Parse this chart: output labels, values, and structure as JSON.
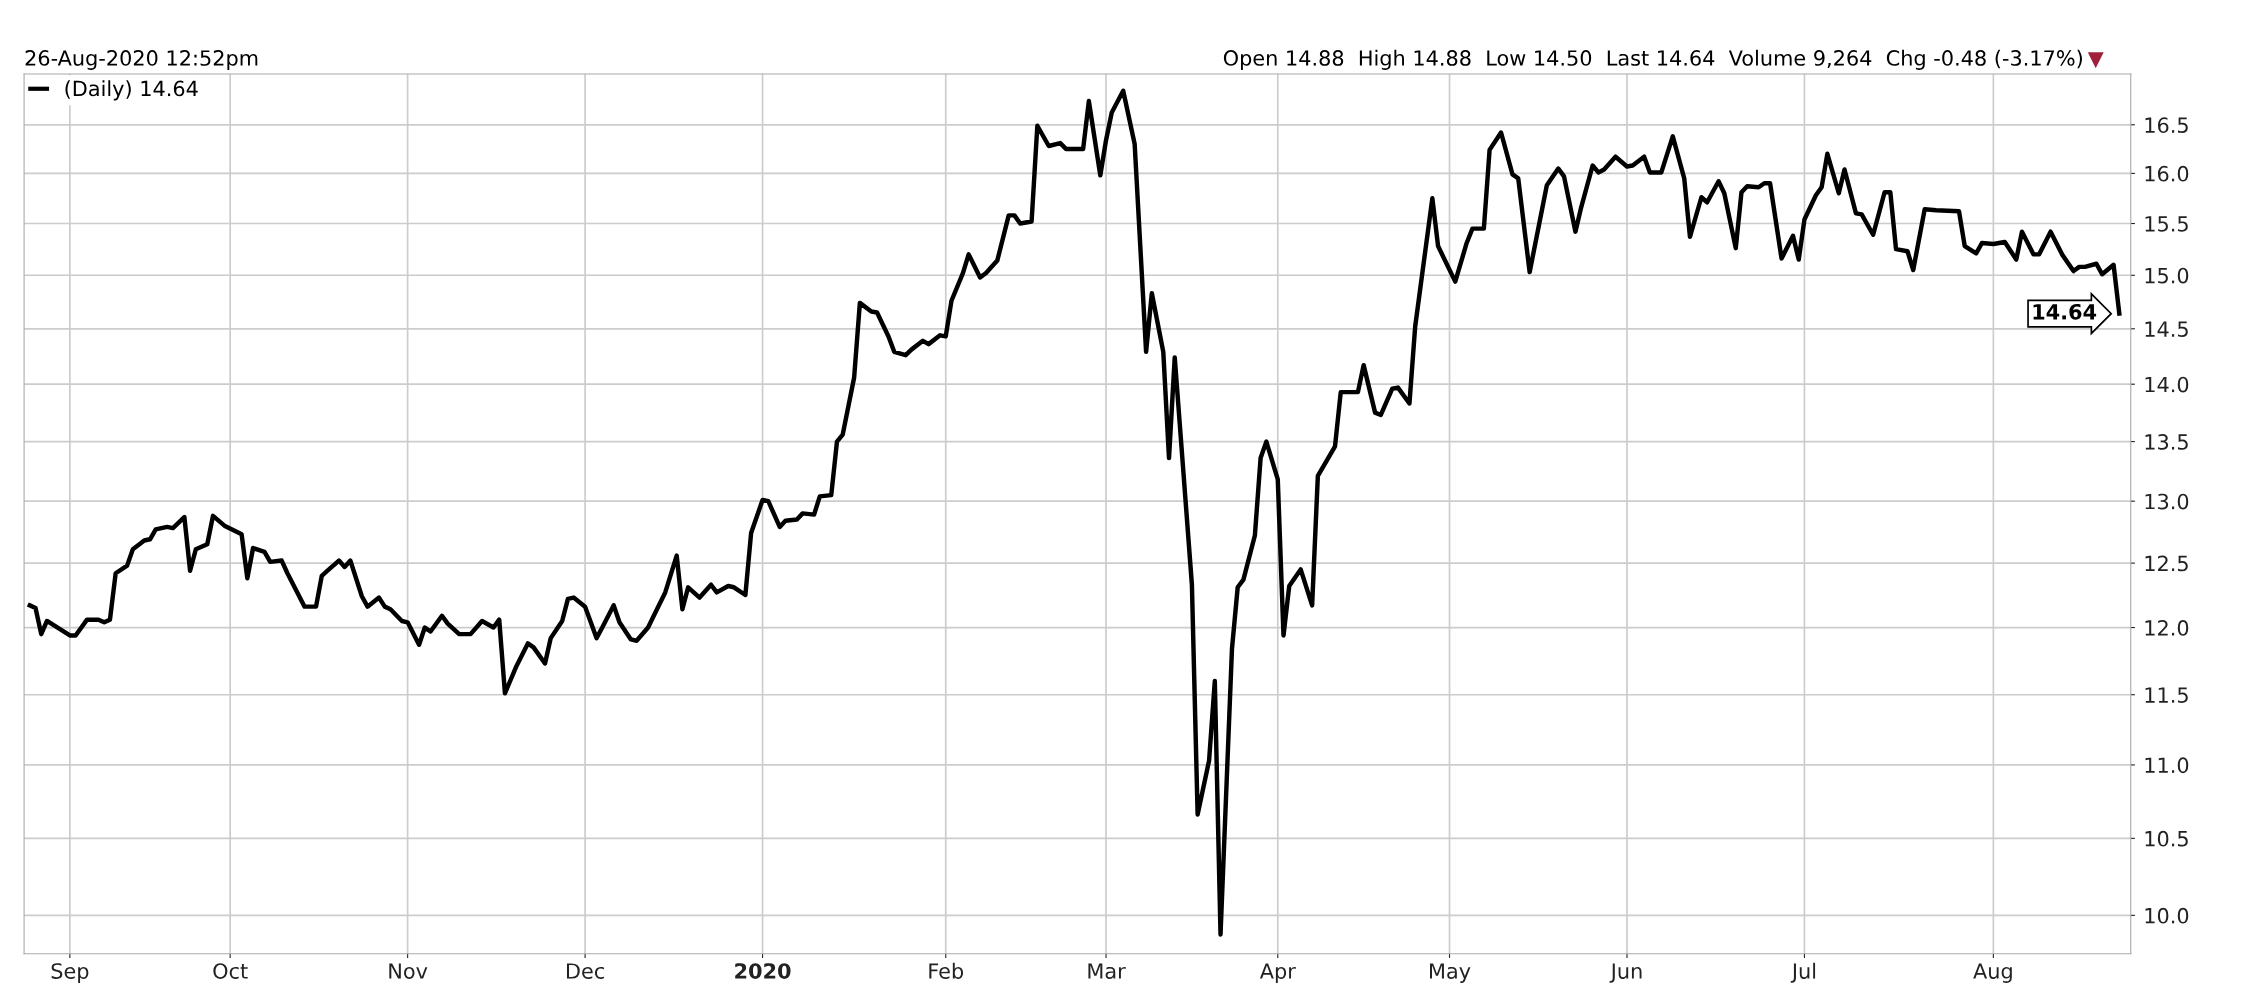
{
  "chart_data": {
    "type": "line",
    "subtitle": "26-Aug-2020 12:52pm",
    "annotations": [
      "Open 14.88  High 14.88  Low 14.50  Last 14.64  Volume 9,264  Chg -0.48 (-3.17%)",
      "▼",
      {
        "text": "14.64",
        "x": "2020-08-26",
        "y": 14.64
      }
    ],
    "x": [
      "2019-08-27",
      "2019-08-28",
      "2019-08-29",
      "2019-08-30",
      "2019-09-03",
      "2019-09-04",
      "2019-09-06",
      "2019-09-08",
      "2019-09-09",
      "2019-09-10",
      "2019-09-11",
      "2019-09-13",
      "2019-09-14",
      "2019-09-16",
      "2019-09-17",
      "2019-09-18",
      "2019-09-20",
      "2019-09-21",
      "2019-09-23",
      "2019-09-24",
      "2019-09-25",
      "2019-09-27",
      "2019-09-28",
      "2019-09-30",
      "2019-10-03",
      "2019-10-04",
      "2019-10-05",
      "2019-10-07",
      "2019-10-08",
      "2019-10-10",
      "2019-10-11",
      "2019-10-14",
      "2019-10-16",
      "2019-10-17",
      "2019-10-18",
      "2019-10-20",
      "2019-10-21",
      "2019-10-22",
      "2019-10-24",
      "2019-10-25",
      "2019-10-27",
      "2019-10-28",
      "2019-10-29",
      "2019-10-31",
      "2019-11-01",
      "2019-11-03",
      "2019-11-04",
      "2019-11-05",
      "2019-11-07",
      "2019-11-08",
      "2019-11-10",
      "2019-11-12",
      "2019-11-14",
      "2019-11-16",
      "2019-11-17",
      "2019-11-18",
      "2019-11-20",
      "2019-11-22",
      "2019-11-23",
      "2019-11-25",
      "2019-11-26",
      "2019-11-28",
      "2019-11-29",
      "2019-11-30",
      "2019-12-02",
      "2019-12-04",
      "2019-12-05",
      "2019-12-07",
      "2019-12-08",
      "2019-12-10",
      "2019-12-11",
      "2019-12-13",
      "2019-12-14",
      "2019-12-16",
      "2019-12-18",
      "2019-12-19",
      "2019-12-20",
      "2019-12-22",
      "2019-12-24",
      "2019-12-25",
      "2019-12-27",
      "2019-12-28",
      "2019-12-30",
      "2019-12-31",
      "2020-01-02",
      "2020-01-03",
      "2020-01-05",
      "2020-01-06",
      "2020-01-08",
      "2020-01-09",
      "2020-01-11",
      "2020-01-12",
      "2020-01-14",
      "2020-01-15",
      "2020-01-16",
      "2020-01-18",
      "2020-01-19",
      "2020-01-21",
      "2020-01-22",
      "2020-01-24",
      "2020-01-25",
      "2020-01-27",
      "2020-01-28",
      "2020-01-30",
      "2020-01-31",
      "2020-02-02",
      "2020-02-03",
      "2020-02-04",
      "2020-02-06",
      "2020-02-07",
      "2020-02-09",
      "2020-02-10",
      "2020-02-12",
      "2020-02-14",
      "2020-02-15",
      "2020-02-16",
      "2020-02-18",
      "2020-02-19",
      "2020-02-21",
      "2020-02-23",
      "2020-02-24",
      "2020-02-27",
      "2020-02-28",
      "2020-03-01",
      "2020-03-02",
      "2020-03-03",
      "2020-03-05",
      "2020-03-07",
      "2020-03-09",
      "2020-03-10",
      "2020-03-12",
      "2020-03-13",
      "2020-03-14",
      "2020-03-17",
      "2020-03-18",
      "2020-03-20",
      "2020-03-21",
      "2020-03-22",
      "2020-03-24",
      "2020-03-25",
      "2020-03-26",
      "2020-03-28",
      "2020-03-29",
      "2020-03-30",
      "2020-04-01",
      "2020-04-02",
      "2020-04-03",
      "2020-04-05",
      "2020-04-07",
      "2020-04-08",
      "2020-04-11",
      "2020-04-12",
      "2020-04-15",
      "2020-04-16",
      "2020-04-18",
      "2020-04-19",
      "2020-04-21",
      "2020-04-22",
      "2020-04-24",
      "2020-04-25",
      "2020-04-28",
      "2020-04-29",
      "2020-05-02",
      "2020-05-04",
      "2020-05-05",
      "2020-05-07",
      "2020-05-08",
      "2020-05-10",
      "2020-05-12",
      "2020-05-13",
      "2020-05-15",
      "2020-05-18",
      "2020-05-20",
      "2020-05-21",
      "2020-05-23",
      "2020-05-24",
      "2020-05-26",
      "2020-05-27",
      "2020-05-28",
      "2020-05-30",
      "2020-06-01",
      "2020-06-02",
      "2020-06-04",
      "2020-06-05",
      "2020-06-07",
      "2020-06-09",
      "2020-06-11",
      "2020-06-12",
      "2020-06-14",
      "2020-06-15",
      "2020-06-17",
      "2020-06-18",
      "2020-06-20",
      "2020-06-21",
      "2020-06-22",
      "2020-06-24",
      "2020-06-25",
      "2020-06-26",
      "2020-06-28",
      "2020-06-30",
      "2020-07-01",
      "2020-07-02",
      "2020-07-04",
      "2020-07-05",
      "2020-07-06",
      "2020-07-08",
      "2020-07-09",
      "2020-07-11",
      "2020-07-12",
      "2020-07-14",
      "2020-07-16",
      "2020-07-17",
      "2020-07-18",
      "2020-07-20",
      "2020-07-21",
      "2020-07-23",
      "2020-07-25",
      "2020-07-29",
      "2020-07-30",
      "2020-08-01",
      "2020-08-02",
      "2020-08-04",
      "2020-08-06",
      "2020-08-08",
      "2020-08-09",
      "2020-08-11",
      "2020-08-12",
      "2020-08-14",
      "2020-08-16",
      "2020-08-18",
      "2020-08-19",
      "2020-08-20",
      "2020-08-22",
      "2020-08-23",
      "2020-08-25",
      "2020-08-26"
    ],
    "series": [
      {
        "name": "(Daily) 14.64",
        "color": "#000000",
        "values": [
          12.17,
          12.15,
          11.95,
          12.05,
          11.94,
          11.94,
          12.06,
          12.06,
          12.04,
          12.06,
          12.42,
          12.48,
          12.61,
          12.68,
          12.69,
          12.77,
          12.79,
          12.78,
          12.87,
          12.44,
          12.61,
          12.65,
          12.88,
          12.8,
          12.73,
          12.38,
          12.62,
          12.59,
          12.51,
          12.52,
          12.42,
          12.16,
          12.16,
          12.4,
          12.44,
          12.52,
          12.47,
          12.52,
          12.24,
          12.16,
          12.23,
          12.16,
          12.14,
          12.05,
          12.04,
          11.87,
          12.0,
          11.97,
          12.09,
          12.03,
          11.95,
          11.95,
          12.05,
          12.0,
          12.06,
          11.51,
          11.71,
          11.88,
          11.85,
          11.73,
          11.92,
          12.05,
          12.22,
          12.23,
          12.16,
          11.92,
          12.0,
          12.17,
          12.04,
          11.91,
          11.9,
          12.0,
          12.09,
          12.27,
          12.56,
          12.14,
          12.31,
          12.23,
          12.33,
          12.27,
          12.32,
          12.31,
          12.25,
          12.74,
          13.01,
          13.0,
          12.79,
          12.84,
          12.85,
          12.9,
          12.89,
          13.04,
          13.05,
          13.5,
          13.56,
          14.06,
          14.74,
          14.66,
          14.65,
          14.43,
          14.29,
          14.26,
          14.31,
          14.39,
          14.36,
          14.44,
          14.43,
          14.76,
          15.02,
          15.2,
          14.98,
          15.02,
          15.14,
          15.58,
          15.58,
          15.5,
          15.52,
          16.49,
          16.28,
          16.31,
          16.25,
          16.25,
          16.75,
          15.98,
          16.34,
          16.63,
          16.86,
          16.3,
          14.29,
          14.83,
          14.29,
          13.36,
          14.24,
          12.33,
          10.66,
          11.03,
          11.6,
          9.88,
          11.84,
          12.31,
          12.37,
          12.72,
          13.36,
          13.5,
          13.18,
          11.94,
          12.32,
          12.45,
          12.17,
          13.21,
          13.46,
          13.93,
          13.93,
          14.17,
          13.75,
          13.73,
          13.96,
          13.97,
          13.83,
          14.52,
          15.75,
          15.28,
          14.94,
          15.31,
          15.45,
          15.45,
          16.24,
          16.42,
          15.99,
          15.95,
          15.03,
          15.88,
          16.05,
          15.97,
          15.42,
          15.66,
          16.08,
          16.01,
          16.04,
          16.17,
          16.07,
          16.08,
          16.17,
          16.01,
          16.01,
          16.38,
          15.95,
          15.37,
          15.76,
          15.71,
          15.92,
          15.8,
          15.26,
          15.81,
          15.87,
          15.86,
          15.9,
          15.9,
          15.16,
          15.38,
          15.15,
          15.54,
          15.78,
          15.86,
          16.2,
          15.8,
          16.04,
          15.6,
          15.59,
          15.39,
          15.81,
          15.81,
          15.25,
          15.23,
          15.05,
          15.64,
          15.63,
          15.62,
          15.28,
          15.21,
          15.31,
          15.3,
          15.32,
          15.15,
          15.42,
          15.2,
          15.2,
          15.42,
          15.2,
          15.04,
          15.08,
          15.08,
          15.11,
          15.01,
          15.1,
          14.64
        ]
      }
    ],
    "xlim": [
      "2019-08-26",
      "2020-08-28"
    ],
    "xticks": [
      {
        "value": "2019-09-03",
        "label": "Sep"
      },
      {
        "value": "2019-10-01",
        "label": "Oct"
      },
      {
        "value": "2019-11-01",
        "label": "Nov"
      },
      {
        "value": "2019-12-02",
        "label": "Dec"
      },
      {
        "value": "2020-01-02",
        "label": "2020"
      },
      {
        "value": "2020-02-03",
        "label": "Feb"
      },
      {
        "value": "2020-03-02",
        "label": "Mar"
      },
      {
        "value": "2020-04-01",
        "label": "Apr"
      },
      {
        "value": "2020-05-01",
        "label": "May"
      },
      {
        "value": "2020-06-01",
        "label": "Jun"
      },
      {
        "value": "2020-07-02",
        "label": "Jul"
      },
      {
        "value": "2020-08-04",
        "label": "Aug"
      }
    ],
    "log": true,
    "ylim": [
      9.76,
      17.04
    ],
    "yticks": [
      {
        "value": 10,
        "label": "10.0"
      },
      10.5,
      {
        "value": 11,
        "label": "11.0"
      },
      11.5,
      {
        "value": 12,
        "label": "12.0"
      },
      12.5,
      {
        "value": 13,
        "label": "13.0"
      },
      13.5,
      {
        "value": 14,
        "label": "14.0"
      },
      14.5,
      {
        "value": 15,
        "label": "15.0"
      },
      15.5,
      {
        "value": 16,
        "label": "16.0"
      },
      16.5
    ],
    "grid": true,
    "legend": "top left",
    "marker": "none",
    "line_style": "solid"
  }
}
